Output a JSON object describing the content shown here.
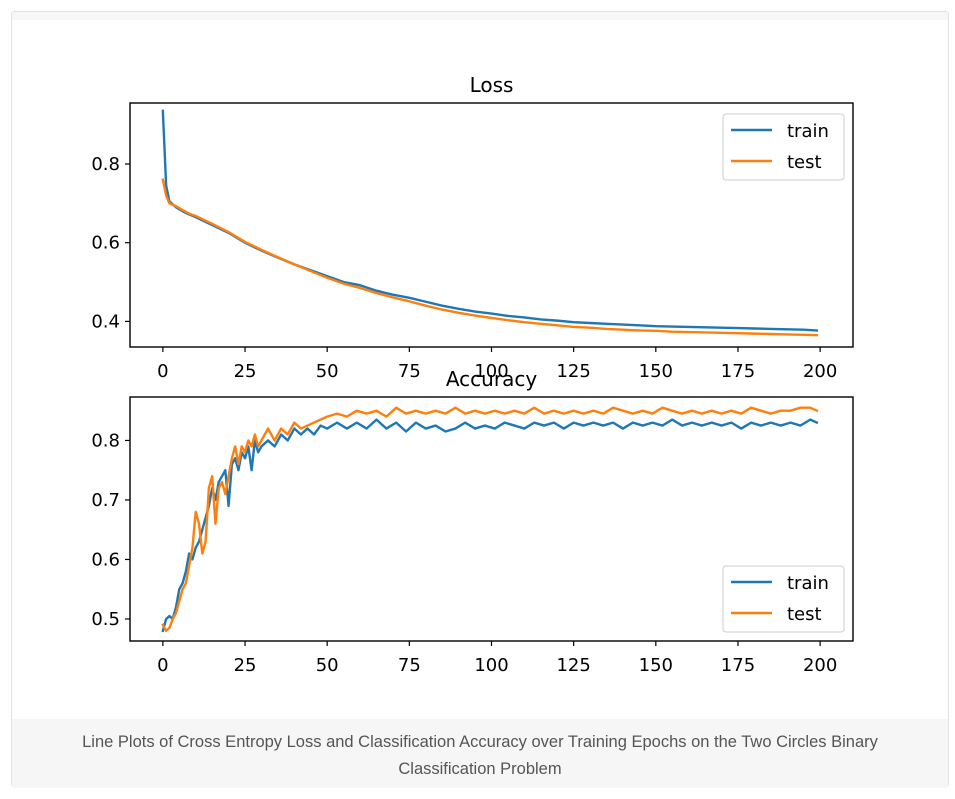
{
  "caption": "Line Plots of Cross Entropy Loss and Classification Accuracy over Training Epochs on the Two Circles Binary Classification Problem",
  "colors": {
    "train": "#1f77b4",
    "test": "#ff7f0e",
    "axis": "#000000",
    "caption_bg": "#f6f6f6"
  },
  "chart_data": [
    {
      "type": "line",
      "title": "Loss",
      "xlabel": "",
      "ylabel": "",
      "xlim": [
        -10,
        210
      ],
      "ylim": [
        0.335,
        0.955
      ],
      "xticks": [
        0,
        25,
        50,
        75,
        100,
        125,
        150,
        175,
        200
      ],
      "yticks": [
        0.4,
        0.6,
        0.8
      ],
      "legend": "top-right",
      "grid": false,
      "series": [
        {
          "name": "train",
          "x": [
            0,
            1,
            2,
            4,
            6,
            8,
            10,
            15,
            20,
            25,
            30,
            35,
            40,
            45,
            50,
            55,
            60,
            65,
            70,
            75,
            80,
            85,
            90,
            95,
            100,
            105,
            110,
            115,
            120,
            125,
            130,
            135,
            140,
            145,
            150,
            155,
            160,
            165,
            170,
            175,
            180,
            185,
            190,
            195,
            199
          ],
          "values": [
            0.935,
            0.745,
            0.705,
            0.69,
            0.68,
            0.672,
            0.665,
            0.645,
            0.625,
            0.6,
            0.58,
            0.562,
            0.545,
            0.53,
            0.515,
            0.5,
            0.492,
            0.478,
            0.468,
            0.46,
            0.45,
            0.44,
            0.432,
            0.425,
            0.42,
            0.414,
            0.41,
            0.405,
            0.402,
            0.398,
            0.396,
            0.394,
            0.392,
            0.39,
            0.388,
            0.387,
            0.386,
            0.385,
            0.384,
            0.383,
            0.382,
            0.381,
            0.38,
            0.379,
            0.377
          ]
        },
        {
          "name": "test",
          "x": [
            0,
            1,
            2,
            4,
            6,
            8,
            10,
            15,
            20,
            25,
            30,
            35,
            40,
            45,
            50,
            55,
            60,
            65,
            70,
            75,
            80,
            85,
            90,
            95,
            100,
            105,
            110,
            115,
            120,
            125,
            130,
            135,
            140,
            145,
            150,
            155,
            160,
            165,
            170,
            175,
            180,
            185,
            190,
            195,
            199
          ],
          "values": [
            0.76,
            0.72,
            0.7,
            0.693,
            0.683,
            0.674,
            0.668,
            0.648,
            0.627,
            0.602,
            0.582,
            0.563,
            0.545,
            0.528,
            0.511,
            0.496,
            0.485,
            0.472,
            0.461,
            0.451,
            0.44,
            0.43,
            0.422,
            0.415,
            0.409,
            0.403,
            0.398,
            0.394,
            0.39,
            0.386,
            0.384,
            0.381,
            0.379,
            0.377,
            0.376,
            0.374,
            0.373,
            0.372,
            0.371,
            0.37,
            0.369,
            0.368,
            0.367,
            0.366,
            0.365
          ]
        }
      ]
    },
    {
      "type": "line",
      "title": "Accuracy",
      "xlabel": "",
      "ylabel": "",
      "xlim": [
        -10,
        210
      ],
      "ylim": [
        0.463,
        0.873
      ],
      "xticks": [
        0,
        25,
        50,
        75,
        100,
        125,
        150,
        175,
        200
      ],
      "yticks": [
        0.5,
        0.6,
        0.7,
        0.8
      ],
      "legend": "lower-right",
      "grid": false,
      "series": [
        {
          "name": "train",
          "x": [
            0,
            1,
            2,
            3,
            4,
            5,
            6,
            7,
            8,
            9,
            10,
            11,
            12,
            13,
            14,
            15,
            16,
            17,
            18,
            19,
            20,
            21,
            22,
            23,
            24,
            25,
            26,
            27,
            28,
            29,
            30,
            32,
            34,
            36,
            38,
            40,
            42,
            44,
            46,
            48,
            50,
            53,
            56,
            59,
            62,
            65,
            68,
            71,
            74,
            77,
            80,
            83,
            86,
            89,
            92,
            95,
            98,
            101,
            104,
            107,
            110,
            113,
            116,
            119,
            122,
            125,
            128,
            131,
            134,
            137,
            140,
            143,
            146,
            149,
            152,
            155,
            158,
            161,
            164,
            167,
            170,
            173,
            176,
            179,
            182,
            185,
            188,
            191,
            194,
            197,
            199
          ],
          "values": [
            0.48,
            0.5,
            0.505,
            0.5,
            0.52,
            0.55,
            0.56,
            0.58,
            0.61,
            0.6,
            0.62,
            0.63,
            0.65,
            0.67,
            0.69,
            0.72,
            0.7,
            0.73,
            0.74,
            0.75,
            0.69,
            0.76,
            0.77,
            0.75,
            0.78,
            0.77,
            0.79,
            0.75,
            0.8,
            0.78,
            0.79,
            0.8,
            0.79,
            0.81,
            0.8,
            0.82,
            0.81,
            0.82,
            0.81,
            0.825,
            0.82,
            0.83,
            0.82,
            0.83,
            0.82,
            0.835,
            0.82,
            0.83,
            0.815,
            0.83,
            0.82,
            0.825,
            0.815,
            0.82,
            0.83,
            0.82,
            0.825,
            0.82,
            0.83,
            0.825,
            0.82,
            0.83,
            0.825,
            0.83,
            0.82,
            0.83,
            0.825,
            0.83,
            0.825,
            0.83,
            0.82,
            0.83,
            0.825,
            0.83,
            0.825,
            0.835,
            0.825,
            0.83,
            0.825,
            0.83,
            0.825,
            0.83,
            0.82,
            0.83,
            0.825,
            0.83,
            0.825,
            0.83,
            0.825,
            0.835,
            0.83
          ]
        },
        {
          "name": "test",
          "x": [
            0,
            1,
            2,
            3,
            4,
            5,
            6,
            7,
            8,
            9,
            10,
            11,
            12,
            13,
            14,
            15,
            16,
            17,
            18,
            19,
            20,
            21,
            22,
            23,
            24,
            25,
            26,
            27,
            28,
            29,
            30,
            32,
            34,
            36,
            38,
            40,
            42,
            44,
            46,
            48,
            50,
            53,
            56,
            59,
            62,
            65,
            68,
            71,
            74,
            77,
            80,
            83,
            86,
            89,
            92,
            95,
            98,
            101,
            104,
            107,
            110,
            113,
            116,
            119,
            122,
            125,
            128,
            131,
            134,
            137,
            140,
            143,
            146,
            149,
            152,
            155,
            158,
            161,
            164,
            167,
            170,
            173,
            176,
            179,
            182,
            185,
            188,
            191,
            194,
            197,
            199
          ],
          "values": [
            0.49,
            0.48,
            0.485,
            0.5,
            0.51,
            0.53,
            0.55,
            0.56,
            0.59,
            0.62,
            0.68,
            0.66,
            0.61,
            0.63,
            0.72,
            0.74,
            0.66,
            0.72,
            0.73,
            0.71,
            0.74,
            0.77,
            0.79,
            0.76,
            0.79,
            0.78,
            0.8,
            0.79,
            0.81,
            0.79,
            0.8,
            0.82,
            0.8,
            0.82,
            0.81,
            0.83,
            0.82,
            0.825,
            0.83,
            0.835,
            0.84,
            0.845,
            0.84,
            0.85,
            0.845,
            0.85,
            0.84,
            0.855,
            0.845,
            0.85,
            0.845,
            0.85,
            0.845,
            0.855,
            0.845,
            0.85,
            0.845,
            0.85,
            0.845,
            0.85,
            0.845,
            0.855,
            0.845,
            0.85,
            0.845,
            0.85,
            0.845,
            0.85,
            0.845,
            0.855,
            0.85,
            0.845,
            0.85,
            0.845,
            0.855,
            0.85,
            0.845,
            0.85,
            0.845,
            0.85,
            0.845,
            0.85,
            0.845,
            0.855,
            0.85,
            0.845,
            0.85,
            0.85,
            0.855,
            0.855,
            0.85
          ]
        }
      ]
    }
  ]
}
